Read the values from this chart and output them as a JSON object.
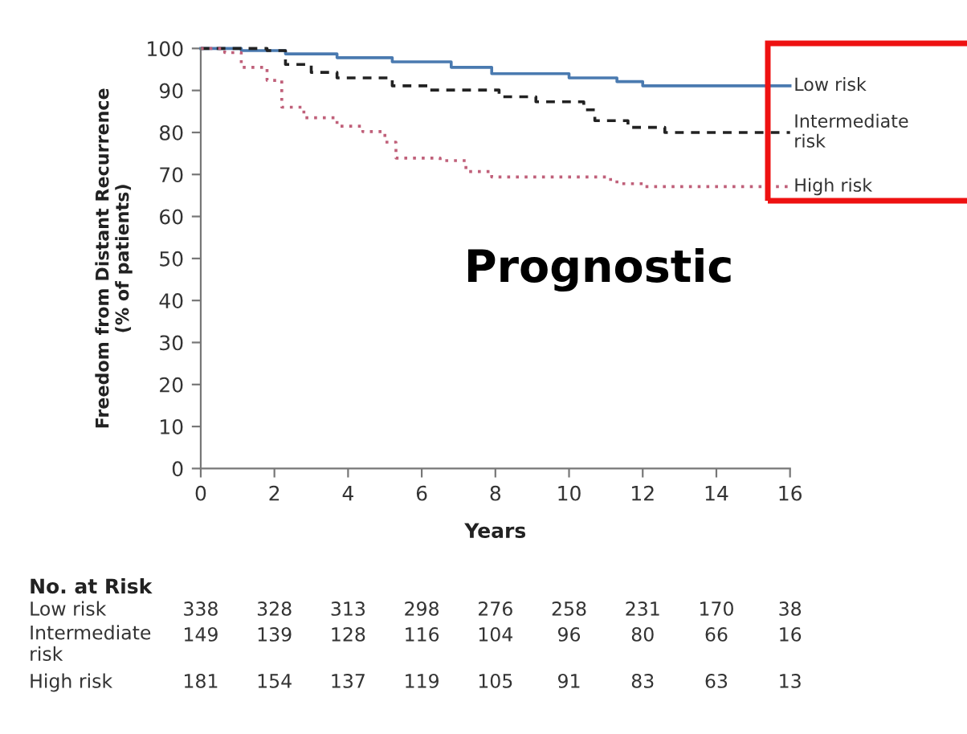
{
  "chart_data": {
    "type": "step",
    "xlabel": "Years",
    "ylabel": "Freedom from Distant Recurrence\n(% of patients)",
    "xlim": [
      0,
      16
    ],
    "xticks": [
      0,
      2,
      4,
      6,
      8,
      10,
      12,
      14,
      16
    ],
    "ylim": [
      0,
      100
    ],
    "yticks": [
      0,
      10,
      20,
      30,
      40,
      50,
      60,
      70,
      80,
      90,
      100
    ],
    "grid": false,
    "legend": false,
    "series": [
      {
        "name": "Low risk",
        "color": "#4a7ab0",
        "line_style": "solid",
        "x": [
          0,
          1.1,
          2.3,
          3.7,
          5.2,
          6.8,
          7.9,
          10,
          11.3,
          12,
          16
        ],
        "values": [
          100,
          99.5,
          98.7,
          97.8,
          96.8,
          95.5,
          94,
          93,
          92.1,
          91.1,
          91.1
        ]
      },
      {
        "name": "Intermediate\nrisk",
        "color": "#222222",
        "line_style": "dashed",
        "x": [
          0,
          1.8,
          2.3,
          3,
          3.7,
          5.2,
          6.2,
          8.1,
          9.1,
          10.4,
          10.7,
          11.6,
          12.6,
          16
        ],
        "values": [
          100,
          99.5,
          96.2,
          94.3,
          93,
          91.1,
          90.1,
          88.5,
          87.3,
          85.4,
          82.8,
          81.2,
          80,
          80
        ]
      },
      {
        "name": "High risk",
        "color": "#c0607a",
        "line_style": "dotted",
        "x": [
          0,
          0.65,
          1.1,
          1.8,
          2.2,
          2.8,
          3.7,
          4.4,
          5,
          5.3,
          6.5,
          7.2,
          7.9,
          11,
          11.3,
          12,
          16
        ],
        "values": [
          100,
          99,
          95.5,
          92.4,
          86,
          83.5,
          81.5,
          80.2,
          77.7,
          73.9,
          73.3,
          70.7,
          69.4,
          68.8,
          67.8,
          67.1,
          67.1
        ]
      }
    ],
    "annotations": [
      "Prognostic",
      "No. at Risk",
      "Low risk",
      "338",
      "328",
      "313",
      "298",
      "276",
      "258",
      "231",
      "170",
      "38",
      "Intermediate\nrisk",
      "149",
      "139",
      "128",
      "116",
      "104",
      "96",
      "80",
      "66",
      "16",
      "High risk",
      "181",
      "154",
      "137",
      "119",
      "105",
      "91",
      "83",
      "63",
      "13"
    ]
  }
}
